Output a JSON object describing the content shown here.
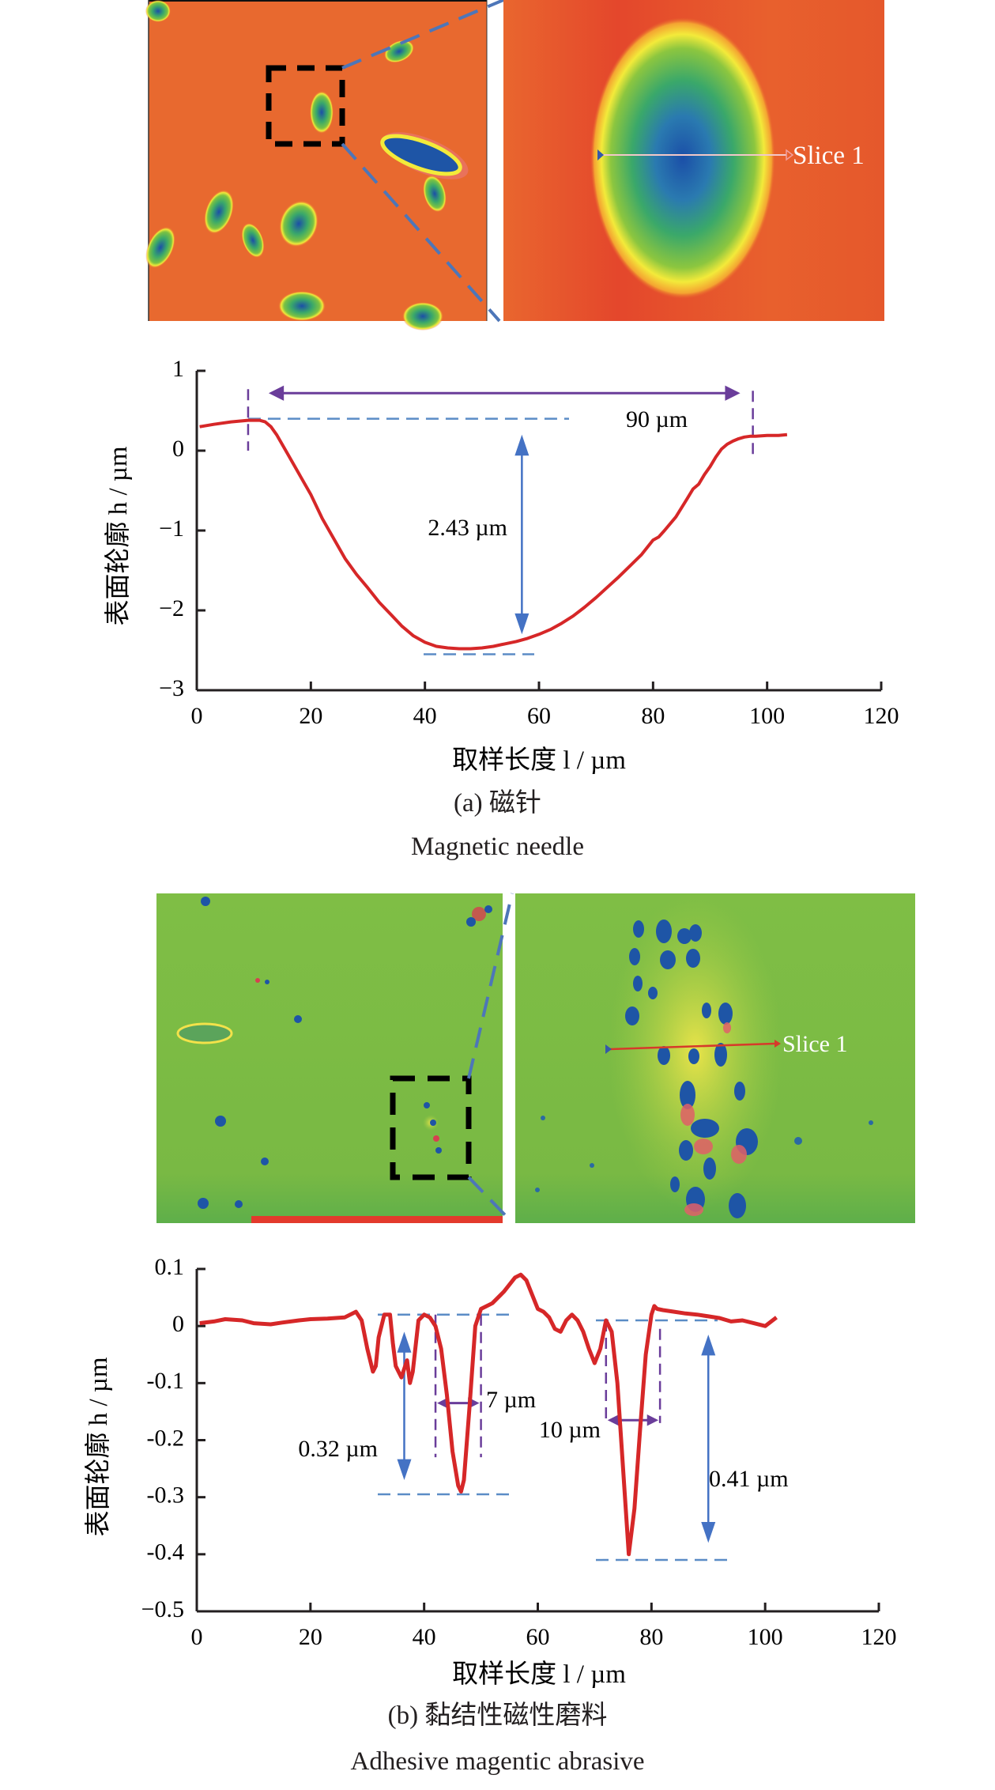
{
  "figure_a": {
    "micrograph": {
      "slice_label": "Slice 1"
    },
    "caption_cn": "(a) 磁针",
    "caption_en": "Magnetic needle"
  },
  "figure_b": {
    "micrograph": {
      "slice_label": "Slice 1"
    },
    "caption_cn": "(b) 黏结性磁性磨料",
    "caption_en": "Adhesive magentic abrasive"
  },
  "colors": {
    "profile": "#d62728",
    "width_arrow": "#6a3d9a",
    "depth_arrow": "#4472c4",
    "guide_dash": "#5b8cc6",
    "axis": "#231f20",
    "needle_bg": "#e8652d",
    "abrasive_bg": "#7dbb42"
  },
  "chart_data": [
    {
      "type": "line",
      "xlabel": "取样长度 l / µm",
      "ylabel": "表面轮廓 h / µm",
      "xlim": [
        0,
        120
      ],
      "ylim": [
        -3,
        1
      ],
      "x_ticks": [
        "0",
        "20",
        "40",
        "60",
        "80",
        "100",
        "120"
      ],
      "y_ticks": [
        "1",
        "0",
        "−1",
        "−2",
        "−3"
      ],
      "y_tick_values": [
        1,
        0,
        -1,
        -2,
        -3
      ],
      "x_tick_values": [
        0,
        20,
        40,
        60,
        80,
        100,
        120
      ],
      "grid": false,
      "series": [
        {
          "name": "Slice 1",
          "x": [
            0.5,
            3,
            6,
            9,
            10,
            11,
            12,
            13,
            14,
            16,
            18,
            20,
            22,
            24,
            26,
            28,
            30,
            32,
            34,
            36,
            38,
            40,
            42,
            44,
            46,
            48,
            50,
            52,
            54,
            56,
            58,
            60,
            62,
            64,
            66,
            68,
            70,
            72,
            74,
            76,
            78,
            80,
            81,
            82,
            84,
            86,
            87,
            88,
            89,
            90,
            91,
            92,
            93,
            94,
            95,
            96,
            97,
            98,
            100,
            102,
            103.5
          ],
          "y": [
            0.3,
            0.33,
            0.36,
            0.38,
            0.38,
            0.38,
            0.36,
            0.3,
            0.2,
            -0.05,
            -0.3,
            -0.55,
            -0.85,
            -1.1,
            -1.35,
            -1.55,
            -1.72,
            -1.9,
            -2.05,
            -2.2,
            -2.32,
            -2.4,
            -2.45,
            -2.47,
            -2.48,
            -2.48,
            -2.47,
            -2.45,
            -2.42,
            -2.39,
            -2.35,
            -2.3,
            -2.24,
            -2.16,
            -2.07,
            -1.96,
            -1.84,
            -1.71,
            -1.58,
            -1.44,
            -1.3,
            -1.12,
            -1.08,
            -1.0,
            -0.83,
            -0.6,
            -0.48,
            -0.42,
            -0.3,
            -0.2,
            -0.08,
            0.02,
            0.08,
            0.12,
            0.15,
            0.17,
            0.18,
            0.18,
            0.19,
            0.19,
            0.2
          ]
        }
      ],
      "annotations": [
        {
          "type": "width",
          "text": "90 µm",
          "x_from": 9,
          "x_to": 97.5,
          "value_um": 90
        },
        {
          "type": "depth",
          "text": "2.43 µm",
          "x": 57,
          "y_top": 0.4,
          "y_bottom": -2.55,
          "value_um": 2.43
        }
      ]
    },
    {
      "type": "line",
      "xlabel": "取样长度 l / µm",
      "ylabel": "表面轮廓 h / µm",
      "xlim": [
        0,
        120
      ],
      "ylim": [
        -0.5,
        0.1
      ],
      "x_ticks": [
        "0",
        "20",
        "40",
        "60",
        "80",
        "100",
        "120"
      ],
      "y_ticks": [
        "0.1",
        "0",
        "-0.1",
        "-0.2",
        "-0.3",
        "-0.4",
        "−0.5"
      ],
      "y_tick_values": [
        0.1,
        0,
        -0.1,
        -0.2,
        -0.3,
        -0.4,
        -0.5
      ],
      "x_tick_values": [
        0,
        20,
        40,
        60,
        80,
        100,
        120
      ],
      "grid": false,
      "series": [
        {
          "name": "Slice 1",
          "x": [
            0.5,
            3,
            5,
            8,
            10,
            13,
            15,
            18,
            20,
            23,
            26,
            28,
            29,
            30,
            31,
            31.5,
            32,
            33,
            34,
            34.5,
            35,
            36,
            37,
            37.5,
            38,
            39,
            40,
            41,
            42,
            43,
            44,
            45,
            46,
            46.5,
            47,
            48,
            49,
            50,
            52,
            54,
            56,
            57,
            58,
            59,
            60,
            61,
            62,
            63,
            64,
            65,
            66,
            67,
            68,
            69,
            70,
            71,
            72,
            73,
            74,
            75,
            76,
            77,
            78,
            79,
            80,
            80.5,
            81,
            82,
            84,
            86,
            88,
            90,
            92,
            94,
            96,
            98,
            100,
            102
          ],
          "y": [
            0.005,
            0.008,
            0.012,
            0.01,
            0.005,
            0.003,
            0.006,
            0.01,
            0.012,
            0.013,
            0.015,
            0.025,
            0.01,
            -0.04,
            -0.08,
            -0.07,
            -0.02,
            0.02,
            0.02,
            -0.03,
            -0.07,
            -0.09,
            -0.06,
            -0.1,
            -0.08,
            0.01,
            0.02,
            0.015,
            0.0,
            -0.04,
            -0.12,
            -0.22,
            -0.28,
            -0.29,
            -0.27,
            -0.14,
            0.0,
            0.03,
            0.04,
            0.06,
            0.085,
            0.09,
            0.08,
            0.055,
            0.03,
            0.025,
            0.015,
            -0.005,
            -0.01,
            0.01,
            0.02,
            0.01,
            -0.01,
            -0.04,
            -0.065,
            -0.04,
            0.01,
            -0.01,
            -0.1,
            -0.25,
            -0.4,
            -0.32,
            -0.18,
            -0.05,
            0.02,
            0.035,
            0.03,
            0.028,
            0.025,
            0.022,
            0.02,
            0.017,
            0.014,
            0.008,
            0.01,
            0.005,
            0.0,
            0.015
          ]
        }
      ],
      "annotations": [
        {
          "type": "width",
          "text": "7 µm",
          "x_from": 42,
          "x_to": 50,
          "value_um": 7
        },
        {
          "type": "width",
          "text": "10 µm",
          "x_from": 72,
          "x_to": 81.5,
          "value_um": 10
        },
        {
          "type": "depth",
          "text": "0.32 µm",
          "x": 36.5,
          "y_top": 0.02,
          "y_bottom": -0.295,
          "value_um": 0.32
        },
        {
          "type": "depth",
          "text": "0.41 µm",
          "x": 90,
          "y_top": 0.01,
          "y_bottom": -0.41,
          "value_um": 0.41
        }
      ]
    }
  ]
}
